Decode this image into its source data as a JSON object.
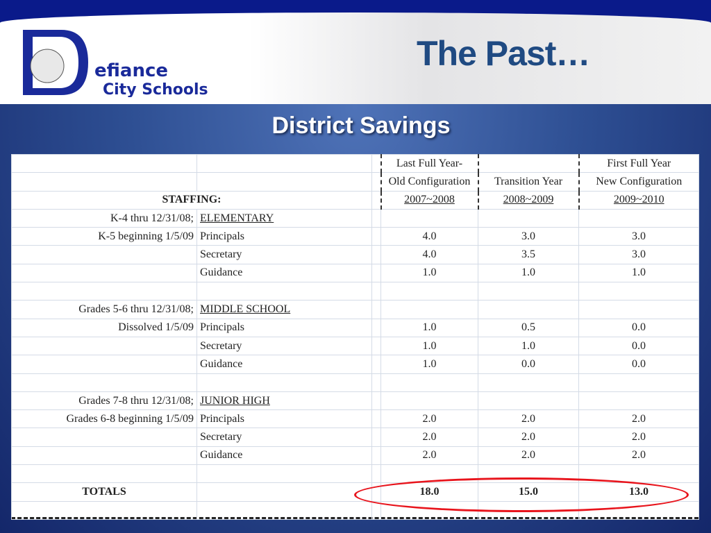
{
  "header": {
    "title": "The Past…",
    "logo_text": [
      "Defiance",
      "City Schools"
    ]
  },
  "slide": {
    "subtitle": "District Savings"
  },
  "table": {
    "col_headers": [
      [
        "",
        "",
        "Last Full Year-",
        "",
        "First Full Year"
      ],
      [
        "",
        "",
        "Old Configuration",
        "Transition Year",
        "New Configuration"
      ],
      [
        "STAFFING:",
        "",
        "2007~2008",
        "2008~2009",
        "2009~2010"
      ]
    ],
    "rows": [
      [
        "K-4 thru 12/31/08;",
        "ELEMENTARY",
        "",
        "",
        ""
      ],
      [
        "K-5 beginning 1/5/09",
        "Principals",
        "4.0",
        "3.0",
        "3.0"
      ],
      [
        "",
        "Secretary",
        "4.0",
        "3.5",
        "3.0"
      ],
      [
        "",
        "Guidance",
        "1.0",
        "1.0",
        "1.0"
      ],
      [
        "",
        "",
        "",
        "",
        ""
      ],
      [
        "Grades 5-6 thru 12/31/08;",
        "MIDDLE SCHOOL",
        "",
        "",
        ""
      ],
      [
        "Dissolved 1/5/09",
        "Principals",
        "1.0",
        "0.5",
        "0.0"
      ],
      [
        "",
        "Secretary",
        "1.0",
        "1.0",
        "0.0"
      ],
      [
        "",
        "Guidance",
        "1.0",
        "0.0",
        "0.0"
      ],
      [
        "",
        "",
        "",
        "",
        ""
      ],
      [
        "Grades 7-8 thru 12/31/08;",
        "JUNIOR HIGH",
        "",
        "",
        ""
      ],
      [
        "Grades 6-8 beginning 1/5/09",
        "Principals",
        "2.0",
        "2.0",
        "2.0"
      ],
      [
        "",
        "Secretary",
        "2.0",
        "2.0",
        "2.0"
      ],
      [
        "",
        "Guidance",
        "2.0",
        "2.0",
        "2.0"
      ],
      [
        "",
        "",
        "",
        "",
        ""
      ],
      [
        "TOTALS",
        "",
        "18.0",
        "15.0",
        "13.0"
      ],
      [
        "",
        "",
        "",
        "",
        ""
      ]
    ]
  },
  "colors": {
    "title": "#1f4a82",
    "highlight": "#e8141c",
    "background": "#2e4f93"
  }
}
